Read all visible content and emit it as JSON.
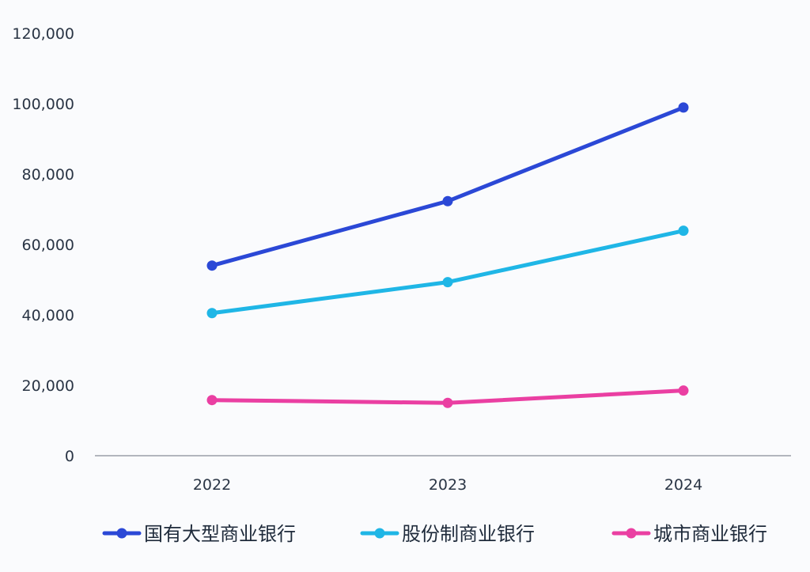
{
  "chart_data": {
    "type": "line",
    "title": "",
    "xlabel": "",
    "ylabel": "",
    "categories": [
      "2022",
      "2023",
      "2024"
    ],
    "ylim": [
      0,
      120000
    ],
    "yticks": [
      0,
      20000,
      40000,
      60000,
      80000,
      100000,
      120000
    ],
    "ytick_labels": [
      "0",
      "20,000",
      "40,000",
      "60,000",
      "80,000",
      "100,000",
      "120,000"
    ],
    "grid": false,
    "legend_position": "bottom",
    "series": [
      {
        "name": "国有大型商业银行",
        "color": "#2b48d6",
        "values": [
          54000,
          72300,
          98900
        ]
      },
      {
        "name": "股份制商业银行",
        "color": "#1fb6e6",
        "values": [
          40500,
          49300,
          63900
        ]
      },
      {
        "name": "城市商业银行",
        "color": "#ea3fa2",
        "values": [
          15800,
          15000,
          18500
        ]
      }
    ]
  }
}
